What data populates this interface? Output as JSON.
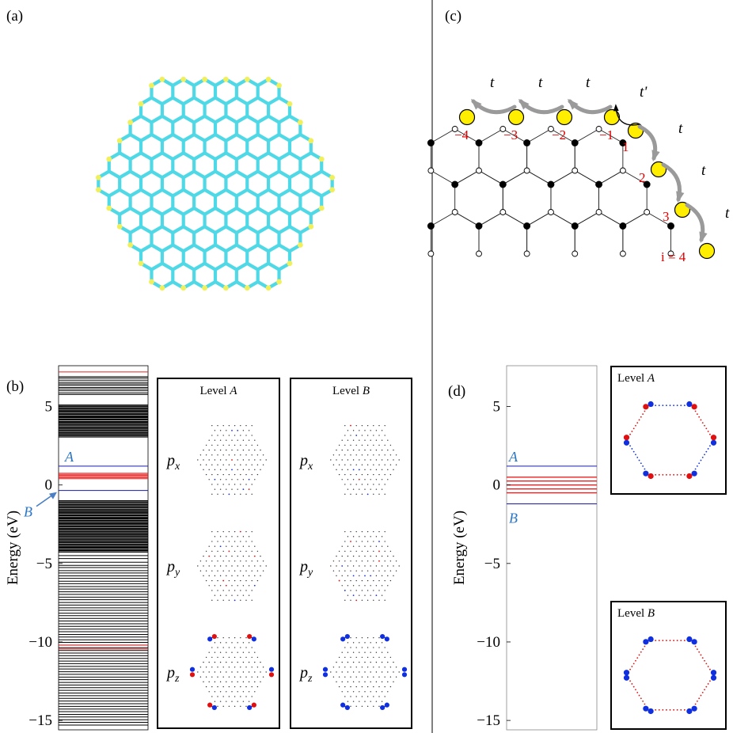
{
  "panels": {
    "a": {
      "label": "(a)"
    },
    "b": {
      "label": "(b)"
    },
    "c": {
      "label": "(c)"
    },
    "d": {
      "label": "(d)"
    }
  },
  "colors": {
    "lattice_bond": "#4fd8e6",
    "edge_atom": "#f2f05a",
    "level_line": "#1a1ab0",
    "edge_states": "#e82020",
    "positive_amp": "#e01010",
    "negative_amp": "#1030e0",
    "site_yellow": "#ffee00",
    "hop_arrow": "#9a9a9a"
  },
  "spectrum_b": {
    "ylabel": "Energy (eV)",
    "yticks": [
      "5",
      "0",
      "−5",
      "−10",
      "−15"
    ],
    "ytick_values": [
      5,
      0,
      -5,
      -10,
      -15
    ],
    "ylim": [
      -15.6,
      7.6
    ],
    "level_A_label": "A",
    "level_B_label": "B",
    "level_A_energy": 1.2,
    "level_B_energy": -0.35,
    "red_band": [
      0.4,
      0.8
    ],
    "red_lines_low": [
      -10.2,
      -10.45
    ],
    "red_top": 7.2,
    "black_bands": [
      {
        "from": 6.9,
        "to": 5.7,
        "density": "medium"
      },
      {
        "from": 5.1,
        "to": 3.0,
        "density": "dense"
      },
      {
        "from": -1.0,
        "to": -4.3,
        "density": "dense"
      },
      {
        "from": -4.5,
        "to": -15.4,
        "density": "sparse"
      }
    ]
  },
  "orbital_boxes": [
    {
      "title": "Level A",
      "title_prefix": "Level ",
      "title_var": "A",
      "rows": [
        {
          "orbital": "p",
          "sub": "x"
        },
        {
          "orbital": "p",
          "sub": "y"
        },
        {
          "orbital": "p",
          "sub": "z"
        }
      ]
    },
    {
      "title": "Level B",
      "title_prefix": "Level ",
      "title_var": "B",
      "rows": [
        {
          "orbital": "p",
          "sub": "x"
        },
        {
          "orbital": "p",
          "sub": "y"
        },
        {
          "orbital": "p",
          "sub": "z"
        }
      ]
    }
  ],
  "chain": {
    "hopping_labels": [
      "t",
      "t",
      "t",
      "t'",
      "t",
      "t",
      "t"
    ],
    "site_labels": [
      "−4",
      "−3",
      "−2",
      "−1",
      "1",
      "2",
      "3",
      "i = 4"
    ]
  },
  "spectrum_d": {
    "ylabel": "Energy (eV)",
    "yticks": [
      "5",
      "0",
      "−5",
      "−10",
      "−15"
    ],
    "ytick_values": [
      5,
      0,
      -5,
      -10,
      -15
    ],
    "ylim": [
      -15.6,
      7.6
    ],
    "level_A_label": "A",
    "level_B_label": "B",
    "level_A_energy": 1.2,
    "level_B_energy": -1.2,
    "red_lines": [
      0.5,
      0.25,
      0.0,
      -0.25,
      -0.5
    ]
  },
  "level_boxes_d": [
    {
      "title": "Level A",
      "title_prefix": "Level ",
      "title_var": "A"
    },
    {
      "title": "Level B",
      "title_prefix": "Level ",
      "title_var": "B"
    }
  ]
}
